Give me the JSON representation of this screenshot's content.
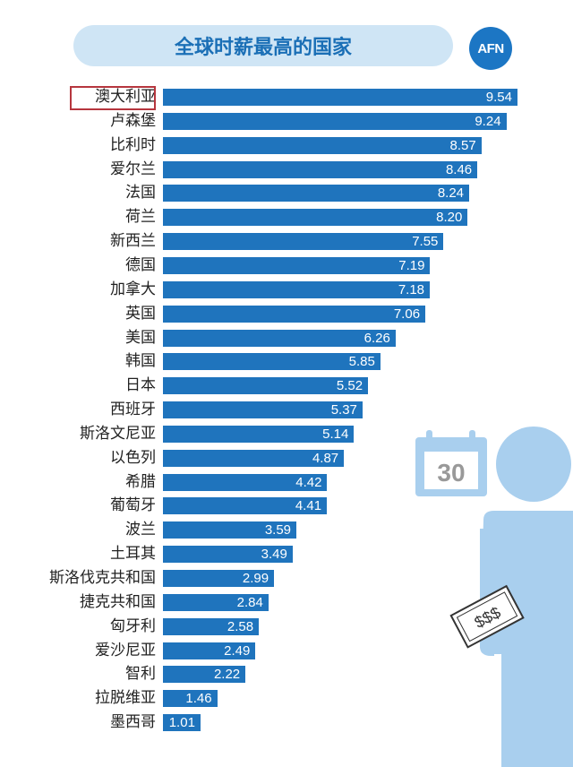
{
  "chart_data": {
    "type": "bar",
    "orientation": "horizontal",
    "title": "全球时薪最高的国家",
    "categories": [
      "澳大利亚",
      "卢森堡",
      "比利时",
      "爱尔兰",
      "法国",
      "荷兰",
      "新西兰",
      "德国",
      "加拿大",
      "英国",
      "美国",
      "韩国",
      "日本",
      "西班牙",
      "斯洛文尼亚",
      "以色列",
      "希腊",
      "葡萄牙",
      "波兰",
      "土耳其",
      "斯洛伐克共和国",
      "捷克共和国",
      "匈牙利",
      "爱沙尼亚",
      "智利",
      "拉脱维亚",
      "墨西哥"
    ],
    "values": [
      9.54,
      9.24,
      8.57,
      8.46,
      8.24,
      8.2,
      7.55,
      7.19,
      7.18,
      7.06,
      6.26,
      5.85,
      5.52,
      5.37,
      5.14,
      4.87,
      4.42,
      4.41,
      3.59,
      3.49,
      2.99,
      2.84,
      2.58,
      2.49,
      2.22,
      1.46,
      1.01
    ],
    "value_labels": [
      "9.54",
      "9.24",
      "8.57",
      "8.46",
      "8.24",
      "8.20",
      "7.55",
      "7.19",
      "7.18",
      "7.06",
      "6.26",
      "5.85",
      "5.52",
      "5.37",
      "5.14",
      "4.87",
      "4.42",
      "4.41",
      "3.59",
      "3.49",
      "2.99",
      "2.84",
      "2.58",
      "2.49",
      "2.22",
      "1.46",
      "1.01"
    ],
    "highlighted_category": "澳大利亚",
    "bar_color": "#1f74bd"
  },
  "logo_text": "AFN",
  "calendar_number": "30",
  "money_text": "$$$",
  "colors": {
    "accent": "#1a6fb6",
    "title_bg": "#cfe5f5",
    "figure": "#a9cfee",
    "highlight_border": "#b6363e"
  }
}
